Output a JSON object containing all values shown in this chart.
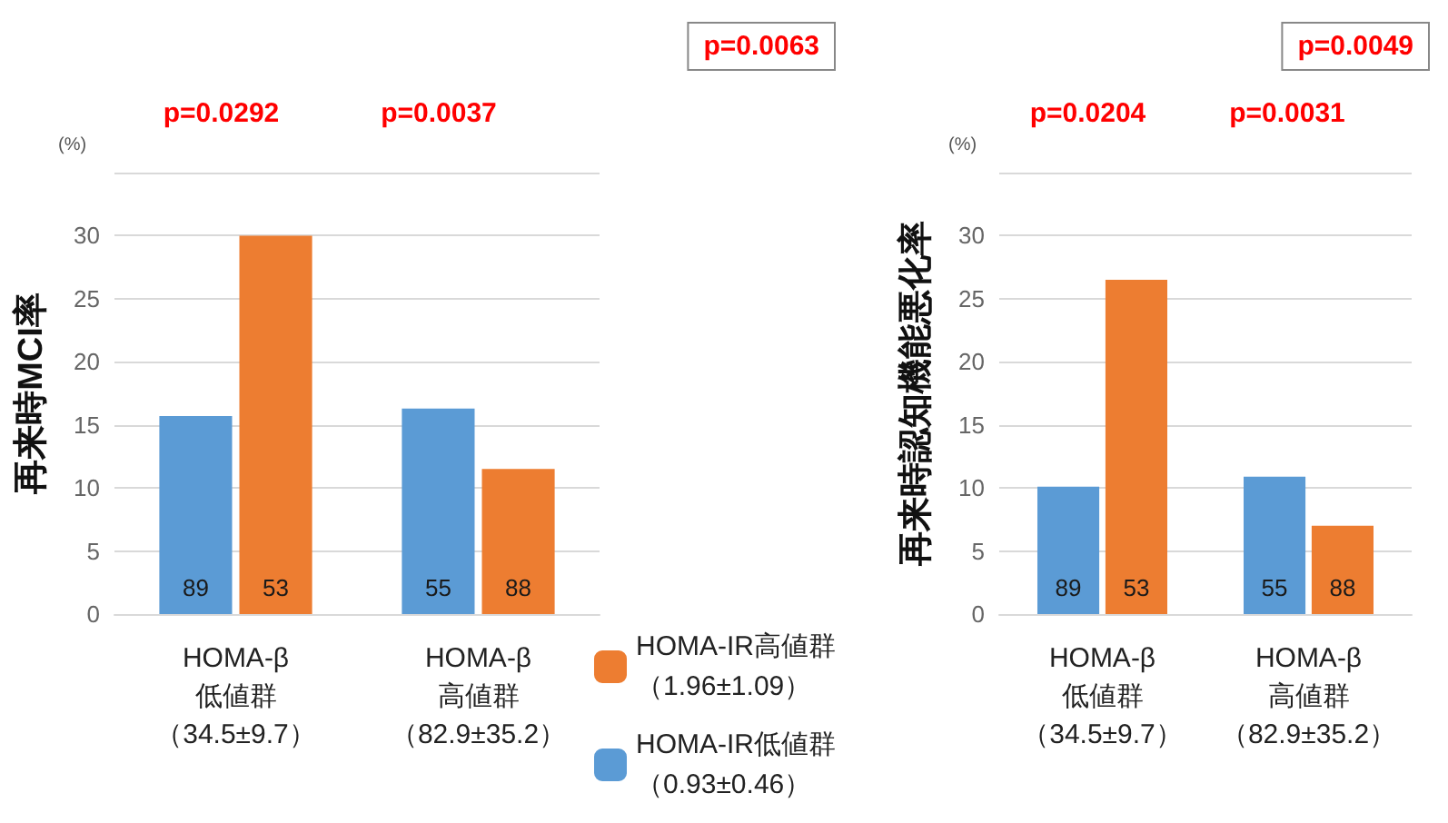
{
  "chart_data": [
    {
      "type": "bar",
      "ylabel": "再来時MCI率",
      "categories": [
        "HOMA-β低値群（34.5±9.7）",
        "HOMA-β高値群（82.9±35.2）"
      ],
      "series": [
        {
          "name": "HOMA-IR低値群（0.93±0.46）",
          "color": "#5b9bd5",
          "values": [
            15.7,
            16.3
          ]
        },
        {
          "name": "HOMA-IR高値群（1.96±1.09）",
          "color": "#ed7d31",
          "values": [
            30,
            11.5
          ]
        }
      ],
      "ylim": [
        0,
        35
      ],
      "yticks": [
        0,
        5,
        10,
        15,
        20,
        25,
        30,
        {
          "value": 35,
          "label": null
        }
      ],
      "grid": "y",
      "legend": "bottom right",
      "annotations": [
        "(%)",
        "p=0.0292",
        "p=0.0037",
        "p=0.0063",
        "89",
        "55",
        "53",
        "88"
      ]
    },
    {
      "type": "bar",
      "ylabel": "再来時認知機能悪化率",
      "categories": [
        "HOMA-β低値群（34.5±9.7）",
        "HOMA-β高値群（82.9±35.2）"
      ],
      "series": [
        {
          "color": "#5b9bd5",
          "values": [
            10.1,
            10.9
          ]
        },
        {
          "color": "#ed7d31",
          "values": [
            26.5,
            7
          ]
        }
      ],
      "ylim": [
        0,
        35
      ],
      "yticks": [
        0,
        5,
        10,
        15,
        20,
        25,
        30,
        {
          "value": 35,
          "label": null
        }
      ],
      "grid": "y",
      "annotations": [
        "(%)",
        "p=0.0204",
        "p=0.0031",
        "p=0.0049",
        "89",
        "55",
        "53",
        "88"
      ]
    }
  ]
}
